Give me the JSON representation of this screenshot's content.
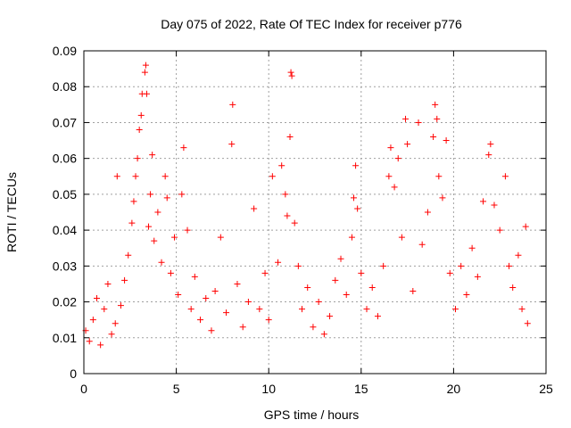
{
  "chart_data": {
    "type": "scatter",
    "title": "Day 075 of 2022, Rate Of TEC Index for receiver p776",
    "xlabel": "GPS time / hours",
    "ylabel": "ROTI / TECUs",
    "xlim": [
      0,
      25
    ],
    "ylim": [
      0,
      0.09
    ],
    "x_ticks": [
      "0",
      "5",
      "10",
      "15",
      "20",
      "25"
    ],
    "y_ticks": [
      "0",
      "0.01",
      "0.02",
      "0.03",
      "0.04",
      "0.05",
      "0.06",
      "0.07",
      "0.08",
      "0.09"
    ],
    "grid": true,
    "marker": "plus",
    "color": "#ff0000",
    "series": [
      {
        "points": [
          [
            0.1,
            0.012
          ],
          [
            0.3,
            0.009
          ],
          [
            0.5,
            0.015
          ],
          [
            0.7,
            0.021
          ],
          [
            0.9,
            0.008
          ],
          [
            1.1,
            0.018
          ],
          [
            1.3,
            0.025
          ],
          [
            1.5,
            0.011
          ],
          [
            1.7,
            0.014
          ],
          [
            1.8,
            0.055
          ],
          [
            2.0,
            0.019
          ],
          [
            2.2,
            0.026
          ],
          [
            2.4,
            0.033
          ],
          [
            2.6,
            0.042
          ],
          [
            2.7,
            0.048
          ],
          [
            2.8,
            0.055
          ],
          [
            2.9,
            0.06
          ],
          [
            3.0,
            0.068
          ],
          [
            3.1,
            0.072
          ],
          [
            3.15,
            0.078
          ],
          [
            3.3,
            0.084
          ],
          [
            3.35,
            0.086
          ],
          [
            3.4,
            0.078
          ],
          [
            3.5,
            0.041
          ],
          [
            3.6,
            0.05
          ],
          [
            3.7,
            0.061
          ],
          [
            3.8,
            0.037
          ],
          [
            4.0,
            0.045
          ],
          [
            4.2,
            0.031
          ],
          [
            4.4,
            0.055
          ],
          [
            4.5,
            0.049
          ],
          [
            4.7,
            0.028
          ],
          [
            4.9,
            0.038
          ],
          [
            5.1,
            0.022
          ],
          [
            5.3,
            0.05
          ],
          [
            5.4,
            0.063
          ],
          [
            5.6,
            0.04
          ],
          [
            5.8,
            0.018
          ],
          [
            6.0,
            0.027
          ],
          [
            6.3,
            0.015
          ],
          [
            6.6,
            0.021
          ],
          [
            6.9,
            0.012
          ],
          [
            7.1,
            0.023
          ],
          [
            7.4,
            0.038
          ],
          [
            7.7,
            0.017
          ],
          [
            8.0,
            0.064
          ],
          [
            8.05,
            0.075
          ],
          [
            8.3,
            0.025
          ],
          [
            8.6,
            0.013
          ],
          [
            8.9,
            0.02
          ],
          [
            9.2,
            0.046
          ],
          [
            9.5,
            0.018
          ],
          [
            9.8,
            0.028
          ],
          [
            10.0,
            0.015
          ],
          [
            10.2,
            0.055
          ],
          [
            10.5,
            0.031
          ],
          [
            10.7,
            0.058
          ],
          [
            10.9,
            0.05
          ],
          [
            11.0,
            0.044
          ],
          [
            11.15,
            0.066
          ],
          [
            11.2,
            0.084
          ],
          [
            11.25,
            0.083
          ],
          [
            11.4,
            0.042
          ],
          [
            11.6,
            0.03
          ],
          [
            11.8,
            0.018
          ],
          [
            12.1,
            0.024
          ],
          [
            12.4,
            0.013
          ],
          [
            12.7,
            0.02
          ],
          [
            13.0,
            0.011
          ],
          [
            13.3,
            0.016
          ],
          [
            13.6,
            0.026
          ],
          [
            13.9,
            0.032
          ],
          [
            14.2,
            0.022
          ],
          [
            14.5,
            0.038
          ],
          [
            14.6,
            0.049
          ],
          [
            14.7,
            0.058
          ],
          [
            14.8,
            0.046
          ],
          [
            15.0,
            0.028
          ],
          [
            15.3,
            0.018
          ],
          [
            15.6,
            0.024
          ],
          [
            15.9,
            0.016
          ],
          [
            16.2,
            0.03
          ],
          [
            16.5,
            0.055
          ],
          [
            16.6,
            0.063
          ],
          [
            16.8,
            0.052
          ],
          [
            17.0,
            0.06
          ],
          [
            17.2,
            0.038
          ],
          [
            17.4,
            0.071
          ],
          [
            17.5,
            0.064
          ],
          [
            17.8,
            0.023
          ],
          [
            18.1,
            0.07
          ],
          [
            18.3,
            0.036
          ],
          [
            18.6,
            0.045
          ],
          [
            18.9,
            0.066
          ],
          [
            19.0,
            0.075
          ],
          [
            19.1,
            0.071
          ],
          [
            19.2,
            0.055
          ],
          [
            19.4,
            0.049
          ],
          [
            19.6,
            0.065
          ],
          [
            19.8,
            0.028
          ],
          [
            20.1,
            0.018
          ],
          [
            20.4,
            0.03
          ],
          [
            20.7,
            0.022
          ],
          [
            21.0,
            0.035
          ],
          [
            21.3,
            0.027
          ],
          [
            21.6,
            0.048
          ],
          [
            21.9,
            0.061
          ],
          [
            22.0,
            0.064
          ],
          [
            22.2,
            0.047
          ],
          [
            22.5,
            0.04
          ],
          [
            22.8,
            0.055
          ],
          [
            23.0,
            0.03
          ],
          [
            23.2,
            0.024
          ],
          [
            23.5,
            0.033
          ],
          [
            23.7,
            0.018
          ],
          [
            23.9,
            0.041
          ],
          [
            24.0,
            0.014
          ]
        ]
      }
    ]
  }
}
